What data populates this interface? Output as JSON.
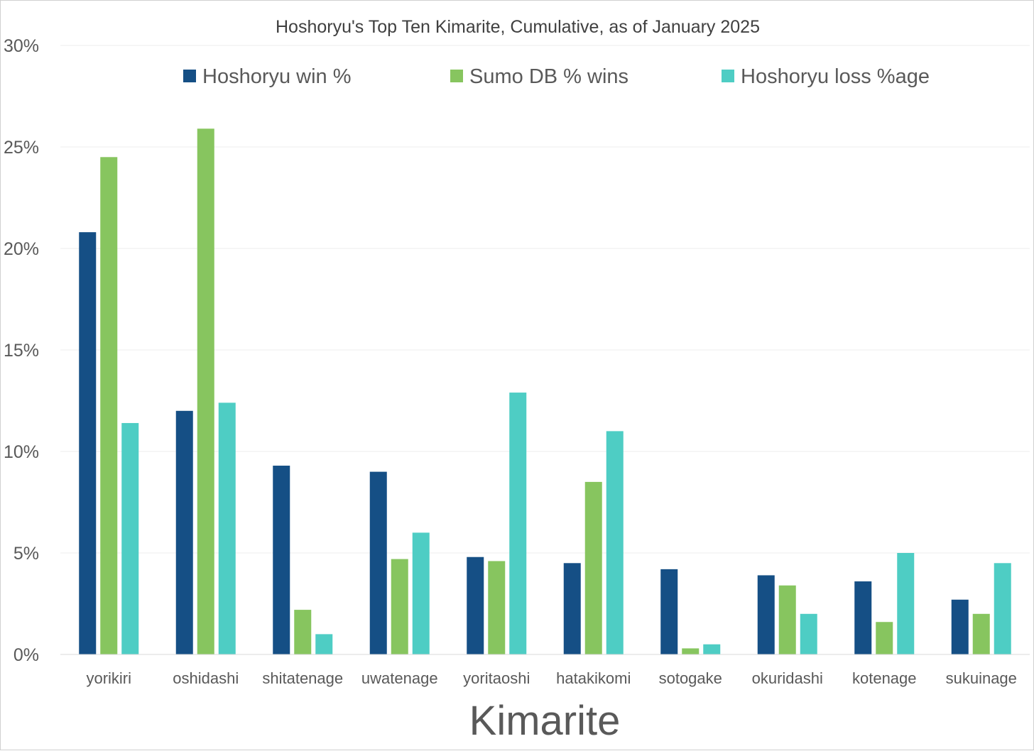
{
  "chart_data": {
    "type": "bar",
    "title": "Hoshoryu's Top Ten Kimarite, Cumulative, as of January 2025",
    "xlabel": "Kimarite",
    "ylabel": "",
    "ylim": [
      0,
      30
    ],
    "yticks": [
      "0%",
      "5%",
      "10%",
      "15%",
      "20%",
      "25%",
      "30%"
    ],
    "grid": true,
    "legend_position": "top",
    "categories": [
      "yorikiri",
      "oshidashi",
      "shitatenage",
      "uwatenage",
      "yoritaoshi",
      "hatakikomi",
      "sotogake",
      "okuridashi",
      "kotenage",
      "sukuinage"
    ],
    "series": [
      {
        "name": "Hoshoryu win %",
        "color": "#154f85",
        "values": [
          20.8,
          12.0,
          9.3,
          9.0,
          4.8,
          4.5,
          4.2,
          3.9,
          3.6,
          2.7
        ]
      },
      {
        "name": "Sumo DB % wins",
        "color": "#87c55f",
        "values": [
          24.5,
          25.9,
          2.2,
          4.7,
          4.6,
          8.5,
          0.3,
          3.4,
          1.6,
          2.0
        ]
      },
      {
        "name": "Hoshoryu loss %age",
        "color": "#4ecdc4",
        "values": [
          11.4,
          12.4,
          1.0,
          6.0,
          12.9,
          11.0,
          0.5,
          2.0,
          5.0,
          4.5
        ]
      }
    ]
  }
}
